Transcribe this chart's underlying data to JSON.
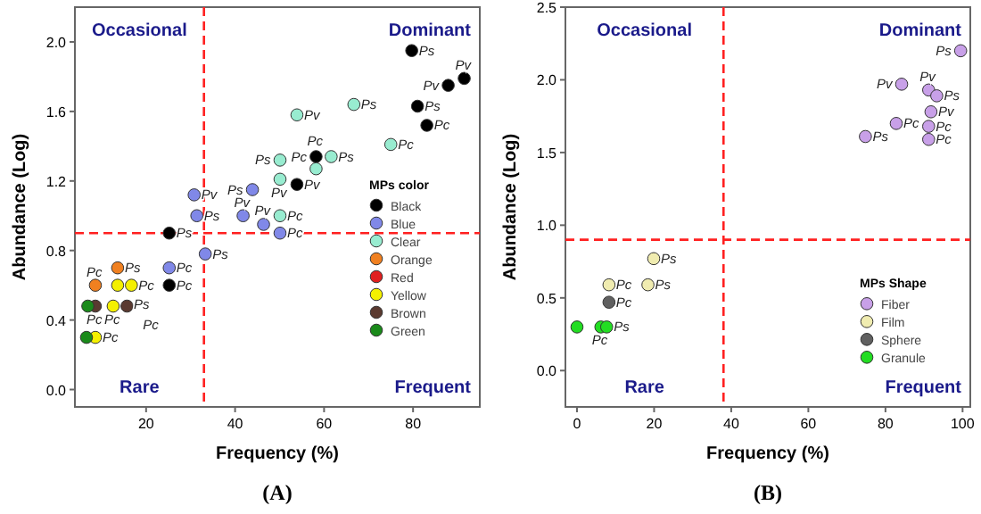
{
  "chart_data": [
    {
      "type": "scatter",
      "xlabel": "Frequency (%)",
      "ylabel": "Abundance (Log)",
      "xlim": [
        4,
        95
      ],
      "ylim": [
        -0.1,
        2.2
      ],
      "xticks": [
        20,
        40,
        60,
        80
      ],
      "yticks": [
        {
          "value": 0,
          "label": "0.0"
        },
        0.4,
        0.8,
        1.2,
        1.6,
        {
          "value": 2,
          "label": "2.0"
        }
      ],
      "marker": "circle",
      "legend": "bottom right",
      "legend_title": "MPs color",
      "ref_lines": [
        {
          "axis": "x",
          "value": 33,
          "color": "#ff2020",
          "line_style": "dashed"
        },
        {
          "axis": "y",
          "value": 0.9,
          "color": "#ff2020",
          "line_style": "dashed"
        }
      ],
      "annotations": [
        "Occasional",
        "Dominant",
        "Rare",
        "Frequent",
        "(A)"
      ],
      "series": [
        {
          "name": "Black",
          "color": "#000000",
          "x": [
            79.7,
            87.9,
            91.5,
            81,
            83.1,
            58.2,
            53.9,
            25.2,
            25.2
          ],
          "values": [
            1.95,
            1.75,
            1.79,
            1.63,
            1.52,
            1.34,
            1.18,
            0.9,
            0.6
          ],
          "value_labels": [
            "Ps",
            "Pv",
            "Pv",
            "Ps",
            "Pc",
            "Pc",
            "Pv",
            "Ps",
            "Pc"
          ]
        },
        {
          "name": "Blue",
          "color": "#8088e8",
          "x": [
            30.8,
            31.4,
            43.9,
            41.8,
            46.4,
            50.1,
            33.3,
            25.2
          ],
          "values": [
            1.12,
            1.0,
            1.15,
            1.0,
            0.95,
            0.9,
            0.78,
            0.7
          ],
          "value_labels": [
            "Pv",
            "Ps",
            "Ps",
            "Pv",
            "Pv",
            "Pc",
            "Ps",
            "Pc"
          ]
        },
        {
          "name": "Clear",
          "color": "#98ecd0",
          "x": [
            53.9,
            66.7,
            75,
            50.1,
            50.1,
            50.1,
            58.2,
            61.6
          ],
          "values": [
            1.58,
            1.64,
            1.41,
            1.32,
            1.21,
            1.0,
            1.27,
            1.34
          ],
          "value_labels": [
            "Pv",
            "Ps",
            "Pc",
            "Ps",
            "Pv",
            "Pc",
            "Pc",
            "Ps"
          ]
        },
        {
          "name": "Orange",
          "color": "#f08020",
          "x": [
            13.6,
            8.6
          ],
          "values": [
            0.7,
            0.6
          ],
          "value_labels": [
            "Ps",
            "Pc"
          ]
        },
        {
          "name": "Red",
          "color": "#e02020"
        },
        {
          "name": "Yellow",
          "color": "#f4f000",
          "x": [
            13.6,
            16.7,
            12.6,
            8.6
          ],
          "values": [
            0.6,
            0.6,
            0.48,
            0.3
          ],
          "value_labels": [
            "Ps",
            "Pc",
            "Pc",
            "Pc"
          ]
        },
        {
          "name": "Brown",
          "color": "#5a3a30",
          "x": [
            8.6,
            15.7
          ],
          "values": [
            0.48,
            0.48
          ],
          "value_labels": [
            "Pc",
            "Pc"
          ]
        },
        {
          "name": "Green",
          "color": "#1a8a1a",
          "x": [
            6.9,
            6.6
          ],
          "values": [
            0.48,
            0.3
          ],
          "value_labels": [
            null,
            null
          ]
        }
      ]
    },
    {
      "type": "scatter",
      "xlabel": "Frequency (%)",
      "ylabel": "Abundance (Log)",
      "xlim": [
        -3,
        102
      ],
      "ylim": [
        -0.25,
        2.5
      ],
      "xticks": [
        0,
        20,
        40,
        60,
        80,
        100
      ],
      "yticks": [
        {
          "value": 0,
          "label": "0.0"
        },
        0.5,
        {
          "value": 1,
          "label": "1.0"
        },
        1.5,
        {
          "value": 2,
          "label": "2.0"
        },
        2.5
      ],
      "marker": "circle",
      "legend": "right",
      "legend_title": "MPs Shape",
      "ref_lines": [
        {
          "axis": "x",
          "value": 38,
          "color": "#ff2020",
          "line_style": "dashed"
        },
        {
          "axis": "y",
          "value": 0.9,
          "color": "#ff2020",
          "line_style": "dashed"
        }
      ],
      "annotations": [
        "Occasional",
        "Dominant",
        "Rare",
        "Frequent",
        "(B)"
      ],
      "series": [
        {
          "name": "Fiber",
          "color": "#c8a0e8",
          "x": [
            99.5,
            84.2,
            91.2,
            93.3,
            91.8,
            82.8,
            91.2,
            91.2,
            74.8
          ],
          "values": [
            2.2,
            1.97,
            1.93,
            1.89,
            1.78,
            1.7,
            1.68,
            1.59,
            1.61
          ],
          "value_labels": [
            "Ps",
            "Pv",
            "Pv",
            "Ps",
            "Pv",
            "Pc",
            "Pc",
            "Pc",
            "Ps"
          ]
        },
        {
          "name": "Film",
          "color": "#f0ecb0",
          "x": [
            19.9,
            8.3,
            18.4
          ],
          "values": [
            0.77,
            0.59,
            0.59
          ],
          "value_labels": [
            "Ps",
            "Pc",
            "Ps"
          ]
        },
        {
          "name": "Sphere",
          "color": "#606060",
          "x": [
            8.3
          ],
          "values": [
            0.47
          ],
          "value_labels": [
            "Pc"
          ]
        },
        {
          "name": "Granule",
          "color": "#22dd22",
          "x": [
            0,
            6.2,
            7.7
          ],
          "values": [
            0.3,
            0.3,
            0.3
          ],
          "value_labels": [
            null,
            "Pc",
            "Ps"
          ]
        }
      ]
    }
  ]
}
